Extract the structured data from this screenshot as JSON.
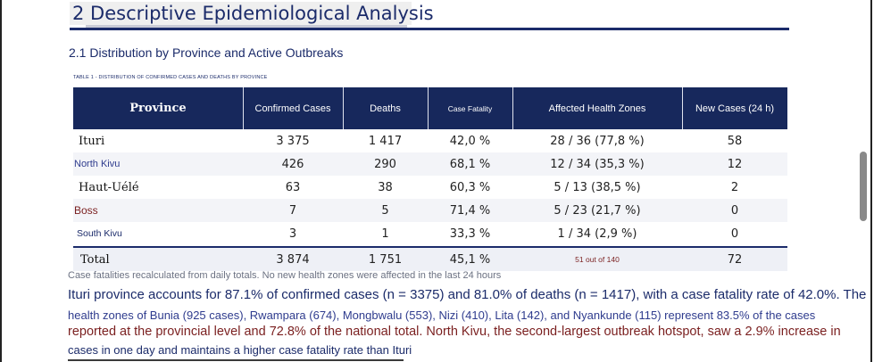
{
  "heading": "2 Descriptive Epidemiological Analysis",
  "subheading": "2.1 Distribution by Province and Active Outbreaks",
  "table_caption": "TABLE 1 - DISTRIBUTION OF CONFIRMED CASES AND DEATHS BY PROVINCE",
  "table": {
    "headers": [
      "Province",
      "Confirmed Cases",
      "Deaths",
      "Case Fatality",
      "Affected Health Zones",
      "New Cases (24 h)"
    ],
    "rows": [
      {
        "province": "Ituri",
        "confirmed": "3 375",
        "deaths": "1 417",
        "cfr": "42,0 %",
        "zones": "28 / 36 (77,8 %)",
        "new": "58"
      },
      {
        "province": "North Kivu",
        "confirmed": "426",
        "deaths": "290",
        "cfr": "68,1 %",
        "zones": "12 / 34 (35,3 %)",
        "new": "12"
      },
      {
        "province": "Haut-Uélé",
        "confirmed": "63",
        "deaths": "38",
        "cfr": "60,3 %",
        "zones": "5 / 13 (38,5 %)",
        "new": "2"
      },
      {
        "province": "Boss",
        "confirmed": "7",
        "deaths": "5",
        "cfr": "71,4 %",
        "zones": "5 / 23 (21,7 %)",
        "new": "0"
      },
      {
        "province": "South Kivu",
        "confirmed": "3",
        "deaths": "1",
        "cfr": "33,3 %",
        "zones": "1 / 34 (2,9 %)",
        "new": "0"
      }
    ],
    "total": {
      "province": "Total",
      "confirmed": "3 874",
      "deaths": "1 751",
      "cfr": "45,1 %",
      "zones": "51 out of 140",
      "new": "72"
    }
  },
  "note": "Case fatalities recalculated from daily totals. No new health zones were affected in the last 24 hours",
  "paragraph": [
    "Ituri province accounts for 87.1% of confirmed cases (n = 3375) and 81.0% of deaths (n = 1417), with a case fatality rate of 42.0%. The",
    "health zones of Bunia (925 cases), Rwampara (674), Mongbwalu (553), Nizi (410), Lita (142), and Nyankunde (115) represent 83.5% of the cases",
    "reported at the provincial level and 72.8% of the national total. North Kivu, the second-largest outbreak hotspot, saw a 2.9% increase in",
    "cases in one day and maintains a higher case fatality rate than Ituri"
  ]
}
